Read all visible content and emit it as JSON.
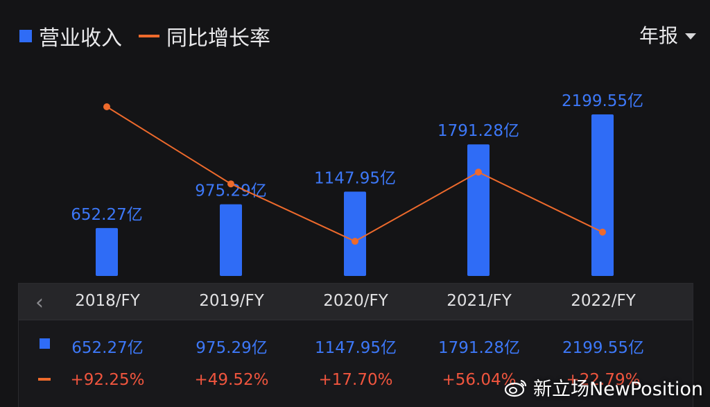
{
  "legend": {
    "bar_label": "营业收入",
    "line_label": "同比增长率"
  },
  "period_selector": {
    "label": "年报"
  },
  "colors": {
    "bar": "#2f6cf6",
    "line": "#ee6a2c",
    "value_text": "#3d78f8",
    "growth_text": "#f0553e"
  },
  "chart_data": {
    "type": "bar",
    "categories": [
      "2018/FY",
      "2019/FY",
      "2020/FY",
      "2021/FY",
      "2022/FY"
    ],
    "series": [
      {
        "name": "营业收入",
        "type": "bar",
        "values": [
          652.27,
          975.29,
          1147.95,
          1791.28,
          2199.55
        ],
        "unit": "亿",
        "labels": [
          "652.27亿",
          "975.29亿",
          "1147.95亿",
          "1791.28亿",
          "2199.55亿"
        ]
      },
      {
        "name": "同比增长率",
        "type": "line",
        "values": [
          92.25,
          49.52,
          17.7,
          56.04,
          22.79
        ],
        "unit": "%",
        "labels": [
          "+92.25%",
          "+49.52%",
          "+17.70%",
          "+56.04%",
          "+22.79%"
        ]
      }
    ],
    "legend_position": "top-left",
    "grid": false
  },
  "table": {
    "prev_icon": "chevron-left-icon",
    "row_icons": [
      "blue-square-icon",
      "orange-line-icon"
    ]
  },
  "watermark": {
    "text": "新立场NewPosition",
    "icon": "weibo-icon"
  }
}
